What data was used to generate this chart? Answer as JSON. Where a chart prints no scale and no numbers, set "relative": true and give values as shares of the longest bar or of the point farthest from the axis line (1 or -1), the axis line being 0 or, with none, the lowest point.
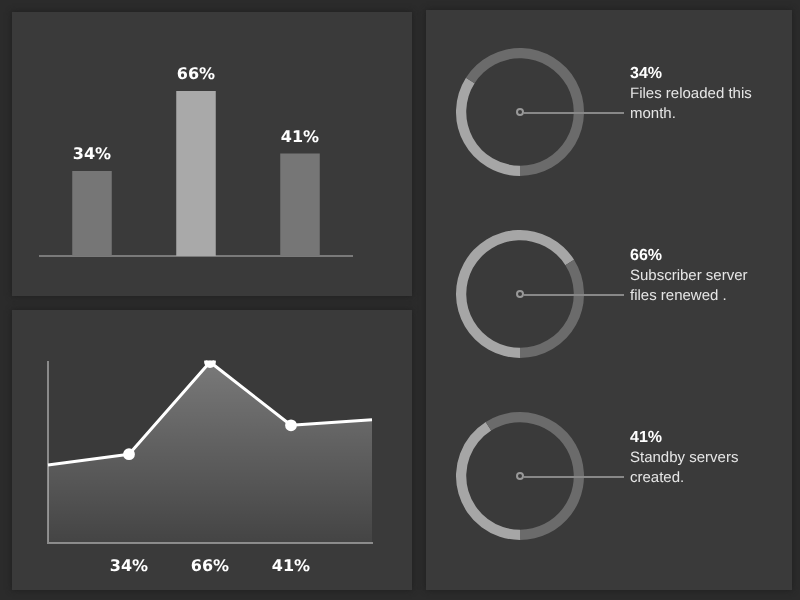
{
  "chart_data": [
    {
      "type": "bar",
      "categories": [
        null,
        null,
        null
      ],
      "values": [
        34,
        66,
        41
      ],
      "colors": [
        "#767676",
        "#a9a9a9",
        "#767676"
      ],
      "value_labels": [
        "34%",
        "66%",
        "41%"
      ]
    },
    {
      "type": "area",
      "relative": true,
      "categories": [
        null,
        "34%",
        "66%",
        "41%",
        null
      ],
      "marker": "circle",
      "series": [
        {
          "color": "#ffffff",
          "values": [
            0.43,
            0.49,
            1,
            0.65,
            0.68
          ]
        }
      ]
    },
    {
      "type": "donut",
      "categories": [
        null,
        null
      ],
      "values": [
        34,
        66
      ],
      "colors": [
        "#a6a6a6",
        "#6b6b6b"
      ],
      "title": "34%",
      "annotations": [
        "Files reloaded this month."
      ]
    },
    {
      "type": "donut",
      "categories": [
        null,
        null
      ],
      "values": [
        66,
        34
      ],
      "colors": [
        "#a6a6a6",
        "#6b6b6b"
      ],
      "title": "66%",
      "annotations": [
        "Subscriber server files renewed ."
      ]
    },
    {
      "type": "donut",
      "categories": [
        null,
        null
      ],
      "values": [
        41,
        59
      ],
      "colors": [
        "#a6a6a6",
        "#6b6b6b"
      ],
      "title": "41%",
      "annotations": [
        "Standby servers created."
      ]
    }
  ]
}
